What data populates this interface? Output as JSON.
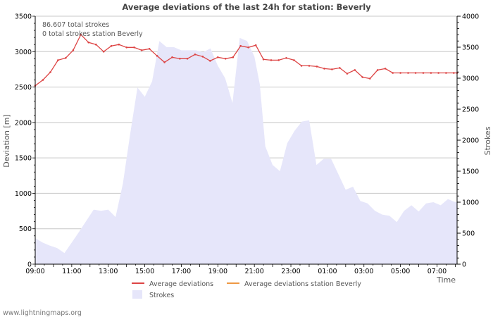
{
  "chart_data": {
    "type": "line+area",
    "title": "Average deviations of the last 24h for station: Beverly",
    "xlabel": "Time",
    "ylabel_left": "Deviation  [m]",
    "ylabel_right": "Strokes",
    "info_lines": [
      "86.607 total strokes",
      "0 total strokes station Beverly"
    ],
    "watermark": "www.lightningmaps.org",
    "x_range_hours": [
      9,
      32.1
    ],
    "y_left_range": [
      0,
      3500
    ],
    "y_right_range": [
      0,
      4000
    ],
    "x_ticks": [
      {
        "h": 9,
        "label": "09:00"
      },
      {
        "h": 11,
        "label": "11:00"
      },
      {
        "h": 13,
        "label": "13:00"
      },
      {
        "h": 15,
        "label": "15:00"
      },
      {
        "h": 17,
        "label": "17:00"
      },
      {
        "h": 19,
        "label": "19:00"
      },
      {
        "h": 21,
        "label": "21:00"
      },
      {
        "h": 23,
        "label": "23:00"
      },
      {
        "h": 25,
        "label": "01:00"
      },
      {
        "h": 27,
        "label": "03:00"
      },
      {
        "h": 29,
        "label": "05:00"
      },
      {
        "h": 31,
        "label": "07:00"
      }
    ],
    "y_left_ticks": [
      0,
      500,
      1000,
      1500,
      2000,
      2500,
      3000,
      3500
    ],
    "y_right_ticks": [
      0,
      500,
      1000,
      1500,
      2000,
      2500,
      3000,
      3500,
      4000
    ],
    "legend": [
      {
        "key": "avg",
        "label": "Average deviations",
        "color": "#dd4444",
        "kind": "line"
      },
      {
        "key": "station",
        "label": "Average deviations station Beverly",
        "color": "#ee9944",
        "kind": "line"
      },
      {
        "key": "strokes",
        "label": "Strokes",
        "color": "#e6e6fa",
        "kind": "area"
      }
    ],
    "colors": {
      "deviation_line": "#dd4444",
      "strokes_fill": "#e6e6fa",
      "grid": "#c8c8c8",
      "axis": "#000000"
    },
    "series": [
      {
        "name": "Average deviations",
        "axis": "left",
        "x": [
          9,
          9.42,
          9.83,
          10.25,
          10.67,
          11.08,
          11.5,
          11.92,
          12.33,
          12.75,
          13.17,
          13.58,
          14,
          14.42,
          14.83,
          15.25,
          15.67,
          16.08,
          16.5,
          16.92,
          17.33,
          17.75,
          18.17,
          18.58,
          19,
          19.42,
          19.83,
          20.25,
          20.67,
          21.08,
          21.5,
          21.92,
          22.33,
          22.75,
          23.17,
          23.58,
          24,
          24.42,
          24.83,
          25.25,
          25.67,
          26.08,
          26.5,
          26.92,
          27.33,
          27.75,
          28.17,
          28.58,
          29,
          29.42,
          29.83,
          30.25,
          30.67,
          31.08,
          31.5,
          31.92,
          32.1
        ],
        "values": [
          2520,
          2600,
          2710,
          2880,
          2910,
          3020,
          3240,
          3130,
          3100,
          3000,
          3080,
          3100,
          3060,
          3060,
          3020,
          3040,
          2940,
          2850,
          2920,
          2900,
          2900,
          2960,
          2930,
          2870,
          2920,
          2900,
          2920,
          3080,
          3060,
          3090,
          2890,
          2880,
          2880,
          2910,
          2880,
          2800,
          2800,
          2790,
          2760,
          2750,
          2770,
          2690,
          2740,
          2640,
          2620,
          2740,
          2760,
          2700,
          2700,
          2700,
          2700,
          2700,
          2700,
          2700,
          2700,
          2700,
          2700
        ]
      },
      {
        "name": "Strokes",
        "axis": "right",
        "x": [
          9,
          9.4,
          9.8,
          10.2,
          10.6,
          11,
          11.4,
          11.8,
          12.2,
          12.6,
          13,
          13.4,
          13.8,
          14.2,
          14.6,
          15,
          15.4,
          15.8,
          16.2,
          16.6,
          17,
          17.4,
          17.8,
          18.2,
          18.6,
          19,
          19.4,
          19.8,
          20.2,
          20.6,
          21,
          21.3,
          21.6,
          22,
          22.4,
          22.8,
          23.2,
          23.6,
          24,
          24.4,
          24.8,
          25.2,
          25.6,
          26,
          26.4,
          26.8,
          27.2,
          27.6,
          28,
          28.4,
          28.8,
          29.2,
          29.6,
          30,
          30.4,
          30.8,
          31.2,
          31.6,
          32,
          32.1
        ],
        "values": [
          420,
          350,
          300,
          260,
          180,
          350,
          520,
          700,
          880,
          860,
          880,
          760,
          1300,
          2100,
          2850,
          2700,
          2950,
          3600,
          3500,
          3500,
          3450,
          3450,
          3450,
          3420,
          3480,
          3200,
          3000,
          2600,
          3650,
          3600,
          3350,
          2900,
          1900,
          1600,
          1500,
          1950,
          2150,
          2300,
          2320,
          1600,
          1700,
          1700,
          1450,
          1200,
          1250,
          1020,
          980,
          860,
          800,
          780,
          680,
          860,
          950,
          850,
          980,
          1000,
          950,
          1050,
          1000,
          1000
        ]
      }
    ]
  }
}
